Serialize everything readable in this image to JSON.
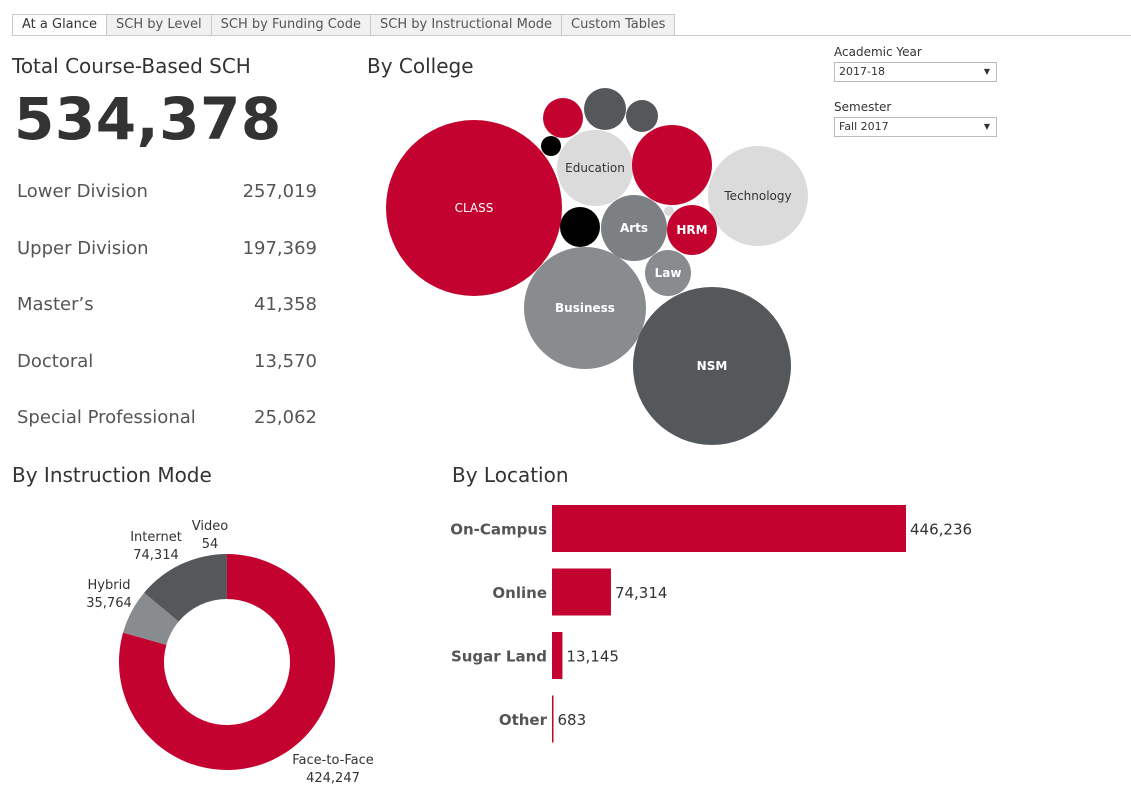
{
  "tabs": [
    "At a Glance",
    "SCH by Level",
    "SCH by Funding Code",
    "SCH by Instructional Mode",
    "Custom Tables"
  ],
  "active_tab": "At a Glance",
  "total": {
    "title": "Total Course-Based SCH",
    "value": "534,378"
  },
  "levels": [
    {
      "label": "Lower Division",
      "value": "257,019"
    },
    {
      "label": "Upper Division",
      "value": "197,369"
    },
    {
      "label": "Master’s",
      "value": "41,358"
    },
    {
      "label": "Doctoral",
      "value": "13,570"
    },
    {
      "label": "Special Professional",
      "value": "25,062"
    }
  ],
  "by_college": {
    "title": "By College",
    "bubbles": [
      {
        "name": "CLASS",
        "color": "#c4022f"
      },
      {
        "name": "Education",
        "color": "#dbdbdb"
      },
      {
        "name": "Technology",
        "color": "#dbdbdb"
      },
      {
        "name": "Arts",
        "color": "#7d8083"
      },
      {
        "name": "HRM",
        "color": "#c4022f"
      },
      {
        "name": "Law",
        "color": "#898c8e"
      },
      {
        "name": "Business",
        "color": "#898c8e"
      },
      {
        "name": "NSM",
        "color": "#54585b"
      },
      {
        "name": "",
        "color": "#c4022f"
      },
      {
        "name": "",
        "color": "#54585b"
      },
      {
        "name": "",
        "color": "#54585b"
      },
      {
        "name": "",
        "color": "#000000"
      },
      {
        "name": "",
        "color": "#c4022f"
      },
      {
        "name": "",
        "color": "#000000"
      },
      {
        "name": "",
        "color": "#dbdbdb"
      }
    ]
  },
  "filters": {
    "year_label": "Academic Year",
    "year_value": "2017-18",
    "semester_label": "Semester",
    "semester_value": "Fall 2017"
  },
  "instruction_mode": {
    "title": "By Instruction Mode",
    "segments": [
      {
        "name": "Face-to-Face",
        "value": 424247,
        "label": "424,247",
        "color": "#c4022f"
      },
      {
        "name": "Hybrid",
        "value": 35764,
        "label": "35,764",
        "color": "#898c8e"
      },
      {
        "name": "Internet",
        "value": 74314,
        "label": "74,314",
        "color": "#54585b"
      },
      {
        "name": "Video",
        "value": 54,
        "label": "54",
        "color": "#54585b"
      }
    ]
  },
  "chart_data": {
    "type": "bar",
    "title": "By Location",
    "categories": [
      "On-Campus",
      "Online",
      "Sugar Land",
      "Other"
    ],
    "values": [
      446236,
      74314,
      13145,
      683
    ],
    "labels": [
      "446,236",
      "74,314",
      "13,145",
      "683"
    ],
    "color": "#c4022f"
  }
}
